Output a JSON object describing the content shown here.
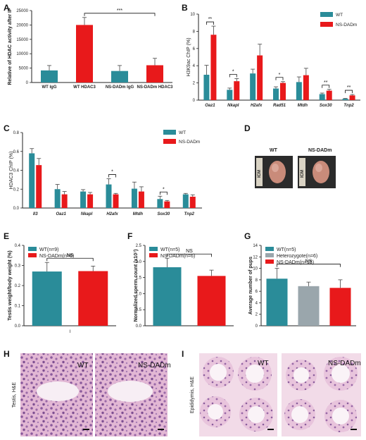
{
  "panels": {
    "A": "A",
    "B": "B",
    "C": "C",
    "D": "D",
    "E": "E",
    "F": "F",
    "G": "G",
    "H": "H",
    "I": "I"
  },
  "colors": {
    "wt": "#2a8c99",
    "ns": "#e8191b",
    "het": "#9aa6ac",
    "axis": "#222222",
    "err": "#444444"
  },
  "chart_data": [
    {
      "id": "A",
      "type": "bar",
      "ylabel": "Relative of HDAC activity after IP",
      "ylim": [
        0,
        25000
      ],
      "yticks": [
        "0",
        "5000",
        "10000",
        "15000",
        "20000",
        "25000"
      ],
      "categories": [
        "WT IgG",
        "WT HDAC3",
        "NS-DADm IgG",
        "NS-DADm HDAC3"
      ],
      "values": [
        4200,
        20000,
        4000,
        6000
      ],
      "errors": [
        1700,
        2600,
        1900,
        2400
      ],
      "bar_colors": [
        "wt",
        "ns",
        "wt",
        "ns"
      ],
      "annotations": [
        {
          "between": [
            1,
            3
          ],
          "text": "***"
        }
      ]
    },
    {
      "id": "B",
      "type": "bar",
      "ylabel": "H3K9ac ChIP (%)",
      "ylim": [
        0,
        10
      ],
      "yticks": [
        "0",
        "2",
        "4",
        "6",
        "8",
        "10"
      ],
      "categories": [
        "Oaz1",
        "Nkapl",
        "H2afx",
        "Rad51",
        "Mtdh",
        "Sox30",
        "Tnp2"
      ],
      "series": [
        {
          "name": "WT",
          "color": "wt",
          "values": [
            2.95,
            1.2,
            3.1,
            1.35,
            2.1,
            0.7,
            0.15
          ],
          "errors": [
            1.1,
            0.2,
            0.5,
            0.2,
            0.6,
            0.12,
            0.05
          ]
        },
        {
          "name": "NS-DADm",
          "color": "ns",
          "values": [
            7.6,
            2.2,
            5.2,
            2.0,
            2.9,
            1.1,
            0.55
          ],
          "errors": [
            1.0,
            0.3,
            1.3,
            0.15,
            0.8,
            0.15,
            0.1
          ]
        }
      ],
      "annotations": [
        {
          "index": 0,
          "text": "**"
        },
        {
          "index": 1,
          "text": "*"
        },
        {
          "index": 3,
          "text": "*"
        },
        {
          "index": 5,
          "text": "**"
        },
        {
          "index": 6,
          "text": "**"
        }
      ]
    },
    {
      "id": "C",
      "type": "bar",
      "ylabel": "HDAC3 ChIP (%)",
      "ylim": [
        0,
        0.8
      ],
      "yticks": [
        "0.0",
        "0.2",
        "0.4",
        "0.6",
        "0.8"
      ],
      "categories": [
        "Il3",
        "Oaz1",
        "Nkapl",
        "H2afx",
        "Mtdh",
        "Sox30",
        "Tnp2"
      ],
      "series": [
        {
          "name": "WT",
          "color": "wt",
          "values": [
            0.58,
            0.2,
            0.175,
            0.25,
            0.205,
            0.095,
            0.145
          ],
          "errors": [
            0.05,
            0.05,
            0.02,
            0.06,
            0.07,
            0.03,
            0.01
          ]
        },
        {
          "name": "NS-DADm",
          "color": "ns",
          "values": [
            0.455,
            0.145,
            0.145,
            0.145,
            0.175,
            0.07,
            0.12
          ],
          "errors": [
            0.07,
            0.03,
            0.02,
            0.01,
            0.05,
            0.01,
            0.02
          ]
        }
      ],
      "annotations": [
        {
          "index": 3,
          "text": "*"
        },
        {
          "index": 5,
          "text": "*"
        }
      ]
    },
    {
      "id": "E",
      "type": "bar",
      "ylabel": "Testis weight/body weight (%)",
      "ylim": [
        0,
        0.4
      ],
      "yticks": [
        "0.0",
        "0.1",
        "0.2",
        "0.3",
        "0.4"
      ],
      "categories": [
        "WT(n=9)",
        "NS-DADm(n=6)"
      ],
      "values": [
        0.27,
        0.272
      ],
      "errors": [
        0.045,
        0.025
      ],
      "bar_colors": [
        "wt",
        "ns"
      ],
      "xtick": "I",
      "annotations": [
        {
          "between": [
            0,
            1
          ],
          "text": "NS"
        }
      ]
    },
    {
      "id": "F",
      "type": "bar",
      "ylabel": "Normalized sperm count (x10⁷)",
      "ylim": [
        0,
        2.5
      ],
      "yticks": [
        "0.0",
        "0.5",
        "1.0",
        "1.5",
        "2.0",
        "2.5"
      ],
      "categories": [
        "WT(n=5)",
        "NS-DADm(n=6)"
      ],
      "values": [
        1.82,
        1.55
      ],
      "errors": [
        0.28,
        0.18
      ],
      "bar_colors": [
        "wt",
        "ns"
      ],
      "annotations": [
        {
          "between": [
            0,
            1
          ],
          "text": "NS"
        }
      ]
    },
    {
      "id": "G",
      "type": "bar",
      "ylabel": "Average number of pups",
      "ylim": [
        0,
        14
      ],
      "yticks": [
        "0",
        "2",
        "4",
        "6",
        "8",
        "10",
        "12",
        "14"
      ],
      "categories": [
        "WT(n=5)",
        "Heterozygote(n=6)",
        "NS-DADm(n=15)"
      ],
      "values": [
        8.2,
        6.9,
        6.6
      ],
      "errors": [
        1.8,
        0.7,
        1.4
      ],
      "bar_colors": [
        "wt",
        "het",
        "ns"
      ],
      "annotations": [
        {
          "between": [
            0,
            2
          ],
          "text": "NS"
        }
      ]
    }
  ],
  "panel_b_legend": {
    "wt": "WT",
    "ns": "NS-DADm"
  },
  "panel_c_legend": {
    "wt": "WT",
    "ns": "NS-DADm"
  },
  "panel_d": {
    "wt": "WT",
    "ns": "NS-DADm",
    "ruler": "ICM"
  },
  "panel_h": {
    "ylabel": "Testis, H&E",
    "wt": "WT",
    "ns": "NS-DADm"
  },
  "panel_i": {
    "ylabel": "Epididymis, H&E",
    "wt": "WT",
    "ns": "NS-DADm"
  }
}
